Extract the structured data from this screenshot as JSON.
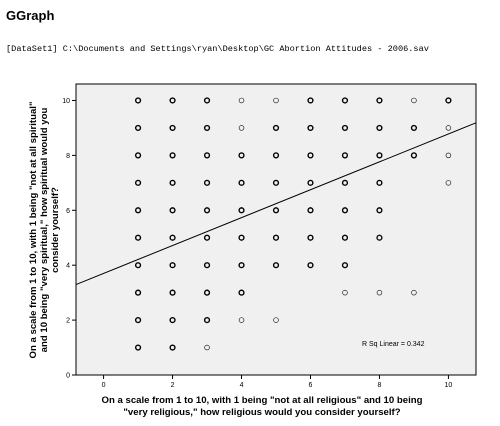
{
  "output": {
    "heading": "GGraph",
    "dataset_line": "[DataSet1] C:\\Documents and Settings\\ryan\\Desktop\\GC Abortion Attitudes - 2006.sav"
  },
  "chart_data": {
    "type": "scatter",
    "xlabel_lines": [
      "On a scale from 1 to 10, with 1 being \"not at all religious\" and 10 being",
      "\"very religious,\" how religious would you consider yourself?"
    ],
    "ylabel_lines": [
      "On a scale from 1 to 10, with 1 being \"not at all spiritual\"",
      "and 10 being \"very spiritual,\" how spiritual would you",
      "consider yourself?"
    ],
    "xlim": [
      -0.8,
      10.8
    ],
    "ylim": [
      0,
      10.6
    ],
    "x_ticks": [
      0,
      2,
      4,
      6,
      8,
      10
    ],
    "y_ticks": [
      0,
      2,
      4,
      6,
      8,
      10
    ],
    "points_bold": [
      [
        1,
        10
      ],
      [
        2,
        10
      ],
      [
        3,
        10
      ],
      [
        6,
        10
      ],
      [
        7,
        10
      ],
      [
        8,
        10
      ],
      [
        10,
        10
      ],
      [
        1,
        9
      ],
      [
        2,
        9
      ],
      [
        3,
        9
      ],
      [
        5,
        9
      ],
      [
        6,
        9
      ],
      [
        7,
        9
      ],
      [
        8,
        9
      ],
      [
        9,
        9
      ],
      [
        1,
        8
      ],
      [
        2,
        8
      ],
      [
        3,
        8
      ],
      [
        4,
        8
      ],
      [
        5,
        8
      ],
      [
        6,
        8
      ],
      [
        7,
        8
      ],
      [
        8,
        8
      ],
      [
        9,
        8
      ],
      [
        1,
        7
      ],
      [
        2,
        7
      ],
      [
        3,
        7
      ],
      [
        4,
        7
      ],
      [
        5,
        7
      ],
      [
        6,
        7
      ],
      [
        7,
        7
      ],
      [
        8,
        7
      ],
      [
        1,
        6
      ],
      [
        2,
        6
      ],
      [
        3,
        6
      ],
      [
        4,
        6
      ],
      [
        5,
        6
      ],
      [
        6,
        6
      ],
      [
        7,
        6
      ],
      [
        8,
        6
      ],
      [
        1,
        5
      ],
      [
        2,
        5
      ],
      [
        3,
        5
      ],
      [
        4,
        5
      ],
      [
        5,
        5
      ],
      [
        6,
        5
      ],
      [
        7,
        5
      ],
      [
        8,
        5
      ],
      [
        1,
        4
      ],
      [
        2,
        4
      ],
      [
        3,
        4
      ],
      [
        4,
        4
      ],
      [
        5,
        4
      ],
      [
        6,
        4
      ],
      [
        7,
        4
      ],
      [
        1,
        3
      ],
      [
        2,
        3
      ],
      [
        3,
        3
      ],
      [
        4,
        3
      ],
      [
        1,
        2
      ],
      [
        2,
        2
      ],
      [
        3,
        2
      ],
      [
        1,
        1
      ],
      [
        2,
        1
      ]
    ],
    "points_light": [
      [
        4,
        10
      ],
      [
        5,
        10
      ],
      [
        9,
        10
      ],
      [
        4,
        9
      ],
      [
        10,
        9
      ],
      [
        10,
        8
      ],
      [
        10,
        7
      ],
      [
        8,
        5
      ],
      [
        7,
        3
      ],
      [
        8,
        3
      ],
      [
        9,
        3
      ],
      [
        4,
        2
      ],
      [
        5,
        2
      ],
      [
        3,
        1
      ]
    ],
    "fit_line": {
      "intercept": 3.7,
      "slope": 0.508
    },
    "annotation": "R Sq Linear = 0.342",
    "grid": false
  }
}
